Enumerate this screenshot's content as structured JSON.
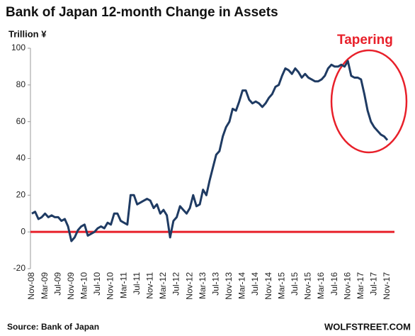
{
  "chart_data": {
    "type": "line",
    "title": "Bank of Japan 12-month Change in Assets",
    "y_label": "Trillion ¥",
    "annotation": "Tapering",
    "source": "Source: Bank of Japan",
    "credit": "WOLFSTREET.COM",
    "color": "#1f3b63",
    "categories": [
      "Nov-08",
      null,
      null,
      null,
      "Mar-09",
      null,
      null,
      null,
      "Jul-09",
      null,
      null,
      null,
      "Nov-09",
      null,
      null,
      null,
      "Mar-10",
      null,
      null,
      null,
      "Jul-10",
      null,
      null,
      null,
      "Nov-10",
      null,
      null,
      null,
      "Mar-11",
      null,
      null,
      null,
      "Jul-11",
      null,
      null,
      null,
      "Nov-11",
      null,
      null,
      null,
      "Mar-12",
      null,
      null,
      null,
      "Jul-12",
      null,
      null,
      null,
      "Nov-12",
      null,
      null,
      null,
      "Mar-13",
      null,
      null,
      null,
      "Jul-13",
      null,
      null,
      null,
      "Nov-13",
      null,
      null,
      null,
      "Mar-14",
      null,
      null,
      null,
      "Jul-14",
      null,
      null,
      null,
      "Nov-14",
      null,
      null,
      null,
      "Mar-15",
      null,
      null,
      null,
      "Jul-15",
      null,
      null,
      null,
      "Nov-15",
      null,
      null,
      null,
      "Mar-16",
      null,
      null,
      null,
      "Jul-16",
      null,
      null,
      null,
      "Nov-16",
      null,
      null,
      null,
      "Mar-17",
      null,
      null,
      null,
      "Jul-17",
      null,
      null,
      null,
      "Nov-17"
    ],
    "values": [
      10,
      11,
      7,
      8,
      10,
      8,
      9,
      8,
      8,
      6,
      7,
      3,
      -5,
      -3,
      1,
      3,
      4,
      -2,
      -1,
      0,
      2,
      3,
      2,
      5,
      4,
      10,
      10,
      6,
      5,
      4,
      20,
      20,
      15,
      16,
      17,
      18,
      17,
      13,
      15,
      10,
      12,
      9,
      -3,
      6,
      8,
      14,
      12,
      10,
      13,
      20,
      14,
      15,
      23,
      20,
      28,
      35,
      42,
      44,
      52,
      57,
      60,
      67,
      66,
      71,
      77,
      77,
      72,
      70,
      71,
      70,
      68,
      70,
      73,
      75,
      79,
      80,
      85,
      89,
      88,
      86,
      89,
      87,
      84,
      86,
      84,
      83,
      82,
      82,
      83,
      85,
      89,
      91,
      90,
      90,
      91,
      90,
      93,
      85,
      84,
      84,
      83,
      75,
      66,
      60,
      57,
      55,
      53,
      52,
      50
    ],
    "ylim": [
      -20,
      100
    ],
    "yticks": [
      -20,
      0,
      20,
      40,
      60,
      80,
      100
    ]
  }
}
